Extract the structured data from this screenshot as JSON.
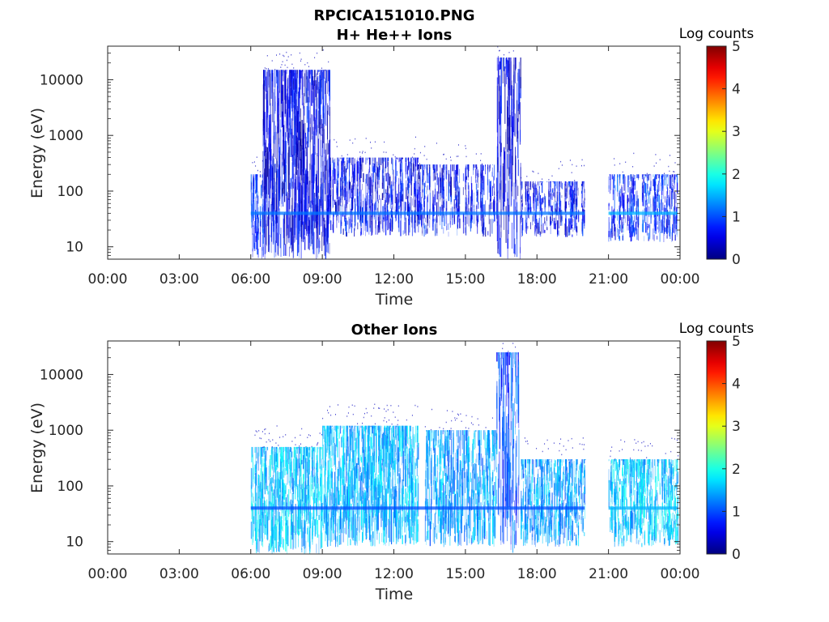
{
  "figure": {
    "title": "RPCICA151010.PNG"
  },
  "chart_data": [
    {
      "type": "heatmap",
      "title": "H+ He++ Ions",
      "xlabel": "Time",
      "ylabel": "Energy (eV)",
      "x_ticks": [
        "00:00",
        "03:00",
        "06:00",
        "09:00",
        "12:00",
        "15:00",
        "18:00",
        "21:00",
        "00:00"
      ],
      "xlim_hours": [
        0,
        24
      ],
      "y_scale": "log",
      "y_ticks": [
        "10",
        "100",
        "1000",
        "10000"
      ],
      "ylim": [
        6,
        40000
      ],
      "colorbar": {
        "label": "Log counts",
        "ticks": [
          "0",
          "1",
          "2",
          "3",
          "4",
          "5"
        ],
        "range": [
          0,
          5
        ],
        "colormap": "jet"
      },
      "regions": [
        {
          "t_start": 6.0,
          "t_end": 6.5,
          "e_min": 6,
          "e_max": 200,
          "log_counts": 0.8,
          "density": 0.5
        },
        {
          "t_start": 6.5,
          "t_end": 9.3,
          "e_min": 6,
          "e_max": 15000,
          "log_counts": 0.5,
          "density": 0.85
        },
        {
          "t_start": 9.3,
          "t_end": 13.0,
          "e_min": 15,
          "e_max": 400,
          "log_counts": 0.6,
          "density": 0.45
        },
        {
          "t_start": 13.0,
          "t_end": 16.3,
          "e_min": 15,
          "e_max": 300,
          "log_counts": 0.6,
          "density": 0.35
        },
        {
          "t_start": 16.3,
          "t_end": 17.3,
          "e_min": 6,
          "e_max": 25000,
          "log_counts": 0.5,
          "density": 0.4
        },
        {
          "t_start": 17.3,
          "t_end": 20.0,
          "e_min": 15,
          "e_max": 150,
          "log_counts": 0.6,
          "density": 0.35
        },
        {
          "t_start": 21.0,
          "t_end": 23.9,
          "e_min": 12,
          "e_max": 200,
          "log_counts": 0.8,
          "density": 0.35
        }
      ],
      "bands": [
        {
          "t_start": 6.0,
          "t_end": 20.0,
          "energy": 40,
          "log_counts": 1.2
        },
        {
          "t_start": 21.0,
          "t_end": 23.9,
          "energy": 40,
          "log_counts": 1.5
        }
      ],
      "gaps": [
        [
          0,
          6.0
        ],
        [
          20.0,
          21.0
        ]
      ]
    },
    {
      "type": "heatmap",
      "title": "Other Ions",
      "xlabel": "Time",
      "ylabel": "Energy (eV)",
      "x_ticks": [
        "00:00",
        "03:00",
        "06:00",
        "09:00",
        "12:00",
        "15:00",
        "18:00",
        "21:00",
        "00:00"
      ],
      "xlim_hours": [
        0,
        24
      ],
      "y_scale": "log",
      "y_ticks": [
        "10",
        "100",
        "1000",
        "10000"
      ],
      "ylim": [
        6,
        40000
      ],
      "colorbar": {
        "label": "Log counts",
        "ticks": [
          "0",
          "1",
          "2",
          "3",
          "4",
          "5"
        ],
        "range": [
          0,
          5
        ],
        "colormap": "jet"
      },
      "regions": [
        {
          "t_start": 6.0,
          "t_end": 9.0,
          "e_min": 6,
          "e_max": 500,
          "log_counts": 1.6,
          "density": 0.7
        },
        {
          "t_start": 9.0,
          "t_end": 13.0,
          "e_min": 8,
          "e_max": 1200,
          "log_counts": 1.5,
          "density": 0.7
        },
        {
          "t_start": 13.3,
          "t_end": 16.3,
          "e_min": 8,
          "e_max": 1000,
          "log_counts": 1.4,
          "density": 0.6
        },
        {
          "t_start": 16.3,
          "t_end": 17.3,
          "e_min": 6,
          "e_max": 25000,
          "log_counts": 1.0,
          "density": 0.35
        },
        {
          "t_start": 17.3,
          "t_end": 20.0,
          "e_min": 8,
          "e_max": 300,
          "log_counts": 1.4,
          "density": 0.55
        },
        {
          "t_start": 21.0,
          "t_end": 23.9,
          "e_min": 8,
          "e_max": 300,
          "log_counts": 1.6,
          "density": 0.55
        }
      ],
      "bands": [
        {
          "t_start": 6.0,
          "t_end": 20.0,
          "energy": 40,
          "log_counts": 1.0
        },
        {
          "t_start": 21.0,
          "t_end": 23.9,
          "energy": 40,
          "log_counts": 1.5
        }
      ],
      "gaps": [
        [
          0,
          6.0
        ],
        [
          20.0,
          21.0
        ]
      ]
    }
  ]
}
